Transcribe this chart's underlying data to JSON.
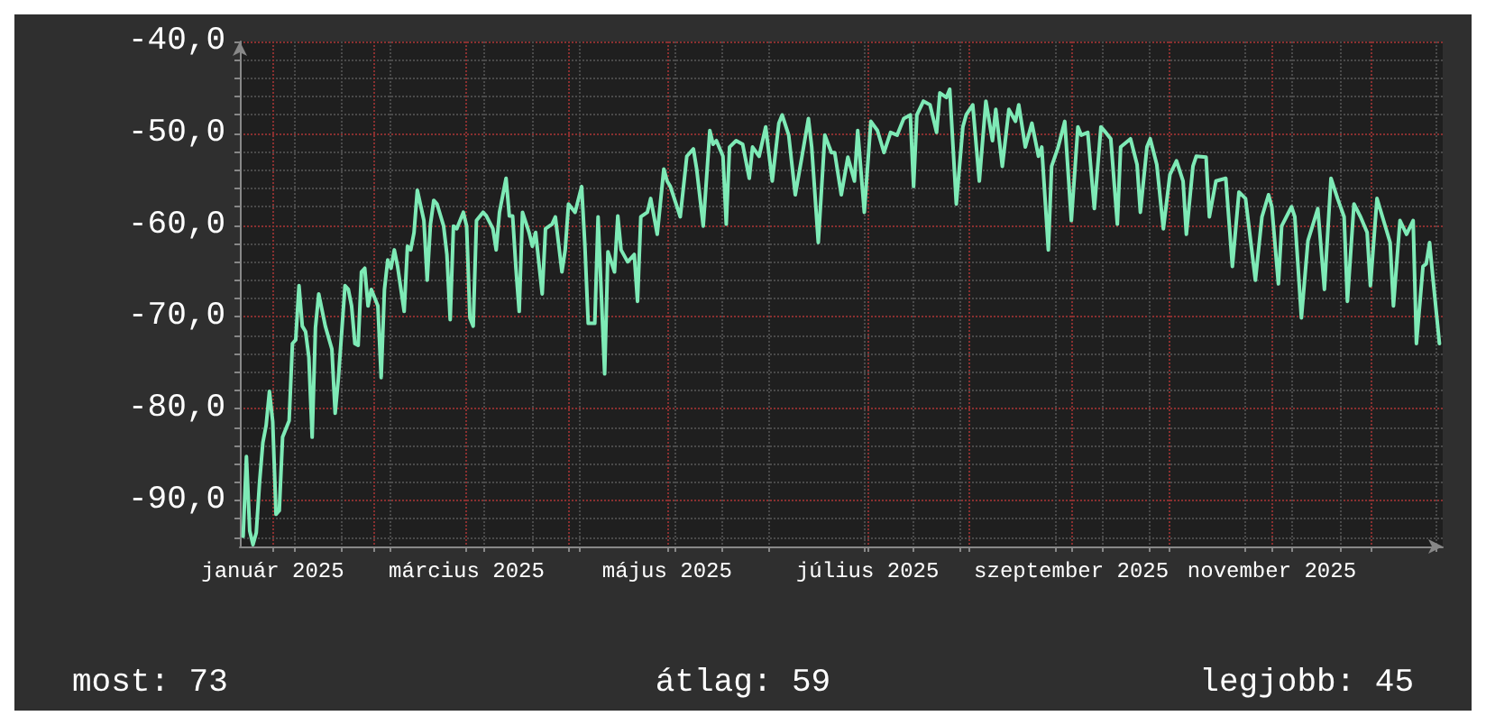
{
  "chart_data": {
    "type": "line",
    "x": [
      "2024-12-23",
      "2024-12-24",
      "2024-12-25",
      "2024-12-26",
      "2024-12-27",
      "2024-12-28",
      "2024-12-29",
      "2024-12-30",
      "2024-12-31",
      "2025-01-01",
      "2025-01-02",
      "2025-01-03",
      "2025-01-04",
      "2025-01-06",
      "2025-01-07",
      "2025-01-08",
      "2025-01-09",
      "2025-01-10",
      "2025-01-11",
      "2025-01-12",
      "2025-01-13",
      "2025-01-14",
      "2025-01-15",
      "2025-01-17",
      "2025-01-19",
      "2025-01-20",
      "2025-01-21",
      "2025-01-23",
      "2025-01-24",
      "2025-01-25",
      "2025-01-26",
      "2025-01-27",
      "2025-01-28",
      "2025-01-29",
      "2025-01-30",
      "2025-01-31",
      "2025-02-02",
      "2025-02-03",
      "2025-02-04",
      "2025-02-05",
      "2025-02-06",
      "2025-02-07",
      "2025-02-08",
      "2025-02-10",
      "2025-02-11",
      "2025-02-12",
      "2025-02-13",
      "2025-02-14",
      "2025-02-16",
      "2025-02-17",
      "2025-02-18",
      "2025-02-19",
      "2025-02-20",
      "2025-02-22",
      "2025-02-23",
      "2025-02-24",
      "2025-02-25",
      "2025-02-26",
      "2025-02-28",
      "2025-03-01",
      "2025-03-02",
      "2025-03-03",
      "2025-03-04",
      "2025-03-06",
      "2025-03-07",
      "2025-03-09",
      "2025-03-10",
      "2025-03-11",
      "2025-03-13",
      "2025-03-14",
      "2025-03-15",
      "2025-03-16",
      "2025-03-17",
      "2025-03-18",
      "2025-03-20",
      "2025-03-21",
      "2025-03-22",
      "2025-03-24",
      "2025-03-25",
      "2025-03-27",
      "2025-03-28",
      "2025-03-30",
      "2025-03-31",
      "2025-04-01",
      "2025-04-03",
      "2025-04-05",
      "2025-04-06",
      "2025-04-07",
      "2025-04-09",
      "2025-04-10",
      "2025-04-12",
      "2025-04-13",
      "2025-04-15",
      "2025-04-16",
      "2025-04-17",
      "2025-04-19",
      "2025-04-21",
      "2025-04-22",
      "2025-04-23",
      "2025-04-25",
      "2025-04-26",
      "2025-04-28",
      "2025-04-30",
      "2025-05-01",
      "2025-05-02",
      "2025-05-05",
      "2025-05-07",
      "2025-05-09",
      "2025-05-10",
      "2025-05-12",
      "2025-05-14",
      "2025-05-15",
      "2025-05-16",
      "2025-05-18",
      "2025-05-19",
      "2025-05-20",
      "2025-05-22",
      "2025-05-24",
      "2025-05-26",
      "2025-05-27",
      "2025-05-29",
      "2025-05-31",
      "2025-06-02",
      "2025-06-04",
      "2025-06-05",
      "2025-06-07",
      "2025-06-09",
      "2025-06-11",
      "2025-06-13",
      "2025-06-14",
      "2025-06-16",
      "2025-06-18",
      "2025-06-20",
      "2025-06-21",
      "2025-06-23",
      "2025-06-25",
      "2025-06-27",
      "2025-06-28",
      "2025-06-30",
      "2025-07-02",
      "2025-07-04",
      "2025-07-06",
      "2025-07-08",
      "2025-07-10",
      "2025-07-12",
      "2025-07-14",
      "2025-07-15",
      "2025-07-16",
      "2025-07-18",
      "2025-07-20",
      "2025-07-22",
      "2025-07-23",
      "2025-07-25",
      "2025-07-26",
      "2025-07-28",
      "2025-07-30",
      "2025-07-31",
      "2025-08-02",
      "2025-08-04",
      "2025-08-06",
      "2025-08-08",
      "2025-08-09",
      "2025-08-11",
      "2025-08-13",
      "2025-08-15",
      "2025-08-16",
      "2025-08-18",
      "2025-08-20",
      "2025-08-22",
      "2025-08-23",
      "2025-08-25",
      "2025-08-26",
      "2025-08-28",
      "2025-08-30",
      "2025-09-01",
      "2025-09-03",
      "2025-09-04",
      "2025-09-06",
      "2025-09-08",
      "2025-09-10",
      "2025-09-11",
      "2025-09-13",
      "2025-09-15",
      "2025-09-16",
      "2025-09-19",
      "2025-09-21",
      "2025-09-22",
      "2025-09-24",
      "2025-09-25",
      "2025-09-27",
      "2025-09-29",
      "2025-10-01",
      "2025-10-03",
      "2025-10-05",
      "2025-10-06",
      "2025-10-08",
      "2025-10-09",
      "2025-10-12",
      "2025-10-13",
      "2025-10-15",
      "2025-10-18",
      "2025-10-20",
      "2025-10-22",
      "2025-10-24",
      "2025-10-27",
      "2025-10-29",
      "2025-10-31",
      "2025-11-01",
      "2025-11-03",
      "2025-11-04",
      "2025-11-07",
      "2025-11-08",
      "2025-11-10",
      "2025-11-12",
      "2025-11-15",
      "2025-11-17",
      "2025-11-19",
      "2025-11-21",
      "2025-11-23",
      "2025-11-24",
      "2025-11-26",
      "2025-11-28",
      "2025-11-30",
      "2025-12-01",
      "2025-12-03",
      "2025-12-05",
      "2025-12-07",
      "2025-12-08",
      "2025-12-10",
      "2025-12-12",
      "2025-12-14",
      "2025-12-15",
      "2025-12-17",
      "2025-12-18",
      "2025-12-19",
      "2025-12-20",
      "2025-12-22"
    ],
    "series": [
      {
        "color": "#7eeab6",
        "values": [
          -93.9,
          -85.2,
          -93.3,
          -94.8,
          -93.5,
          -88,
          -83.7,
          -81.8,
          -78.1,
          -81.4,
          -91.5,
          -91.1,
          -83.1,
          -81.3,
          -72.9,
          -72.5,
          -66.6,
          -71,
          -71.6,
          -74.4,
          -83.1,
          -71.2,
          -67.5,
          -71,
          -73.5,
          -80.5,
          -76.6,
          -66.6,
          -67,
          -68.8,
          -72.9,
          -73.1,
          -65.1,
          -64.7,
          -68.8,
          -67,
          -68.8,
          -76.6,
          -67,
          -63.8,
          -64.7,
          -62.7,
          -64.5,
          -69.4,
          -62.3,
          -62.7,
          -60.8,
          -56.2,
          -59.5,
          -66,
          -59.9,
          -57.3,
          -57.7,
          -60.1,
          -63.2,
          -70.3,
          -60.1,
          -60.4,
          -58.6,
          -60.1,
          -70.1,
          -71,
          -59.5,
          -58.6,
          -59,
          -60.4,
          -62.7,
          -58.6,
          -54.9,
          -59,
          -59,
          -64.7,
          -69.4,
          -58.6,
          -60.8,
          -62.3,
          -60.8,
          -67.5,
          -60.4,
          -59.9,
          -59.1,
          -65.1,
          -62.7,
          -57.7,
          -58.6,
          -55.8,
          -62.3,
          -70.7,
          -70.7,
          -59.1,
          -76.2,
          -62.9,
          -65.1,
          -59,
          -62.7,
          -64,
          -63.2,
          -68.3,
          -59.1,
          -58.6,
          -57.1,
          -61,
          -53.9,
          -55.2,
          -55.8,
          -59.1,
          -52.5,
          -51.7,
          -53.9,
          -60.1,
          -49.7,
          -51.2,
          -50.8,
          -52.5,
          -59.9,
          -51.5,
          -50.8,
          -51.2,
          -54.9,
          -51.5,
          -52.5,
          -49.3,
          -55.2,
          -48.9,
          -48,
          -50.2,
          -56.7,
          -52.6,
          -48.4,
          -51.5,
          -61.9,
          -50.2,
          -52.1,
          -52.1,
          -56.7,
          -52.6,
          -55.2,
          -49.7,
          -58.6,
          -48.7,
          -49.7,
          -52.1,
          -49.9,
          -50.2,
          -48.4,
          -48,
          -55.8,
          -48,
          -46.5,
          -46.9,
          -49.9,
          -45.6,
          -46.1,
          -45.2,
          -57.7,
          -49.3,
          -48,
          -46.9,
          -55.2,
          -46.5,
          -50.8,
          -47.4,
          -53.6,
          -47.4,
          -48.7,
          -46.9,
          -51.5,
          -48.9,
          -52.5,
          -51.5,
          -62.7,
          -53.6,
          -51.5,
          -48.7,
          -59.5,
          -49.3,
          -50.2,
          -49.9,
          -58.2,
          -49.3,
          -49.7,
          -50.6,
          -59.9,
          -51.5,
          -50.6,
          -53.4,
          -58.6,
          -51.5,
          -50.6,
          -53.4,
          -60.4,
          -54.5,
          -53,
          -55.2,
          -61,
          -53.6,
          -52.5,
          -52.6,
          -59.1,
          -55.2,
          -54.9,
          -64.5,
          -56.4,
          -57.1,
          -66,
          -59.1,
          -56.7,
          -58,
          -66.4,
          -60.1,
          -58,
          -59.1,
          -70.1,
          -61.7,
          -58.2,
          -67,
          -54.9,
          -57.1,
          -59.1,
          -68.3,
          -57.7,
          -59.1,
          -60.8,
          -66.6,
          -57.1,
          -59.5,
          -61.9,
          -68.8,
          -59.5,
          -61,
          -59.5,
          -72.9,
          -64.5,
          -64.2,
          -61.9,
          -65.7,
          -72.9
        ]
      }
    ],
    "xlim": [
      "2024-12-22",
      "2025-12-23"
    ],
    "xticks": [
      {
        "value": "2025-01-01",
        "label": "január 2025"
      },
      {
        "value": "2025-02-01",
        "label": null
      },
      {
        "value": "2025-03-01",
        "label": "március 2025"
      },
      {
        "value": "2025-04-01",
        "label": null
      },
      {
        "value": "2025-05-01",
        "label": "május 2025"
      },
      {
        "value": "2025-06-01",
        "label": null
      },
      {
        "value": "2025-07-01",
        "label": "július 2025"
      },
      {
        "value": "2025-08-01",
        "label": null
      },
      {
        "value": "2025-09-01",
        "label": "szeptember 2025"
      },
      {
        "value": "2025-10-01",
        "label": null
      },
      {
        "value": "2025-11-01",
        "label": "november 2025"
      },
      {
        "value": "2025-12-01",
        "label": null
      }
    ],
    "ylim": [
      -95,
      -40
    ],
    "yticks": [
      {
        "value": -90,
        "label": "-90,0"
      },
      {
        "value": -80,
        "label": "-80,0"
      },
      {
        "value": -70,
        "label": "-70,0"
      },
      {
        "value": -60,
        "label": "-60,0"
      },
      {
        "value": -50,
        "label": "-50,0"
      },
      {
        "value": -40,
        "label": "-40,0"
      }
    ],
    "grid": true,
    "marker": "none",
    "line_style": "solid",
    "annotations": [
      "most: 73",
      "átlag: 59",
      "legjobb: 45"
    ]
  }
}
